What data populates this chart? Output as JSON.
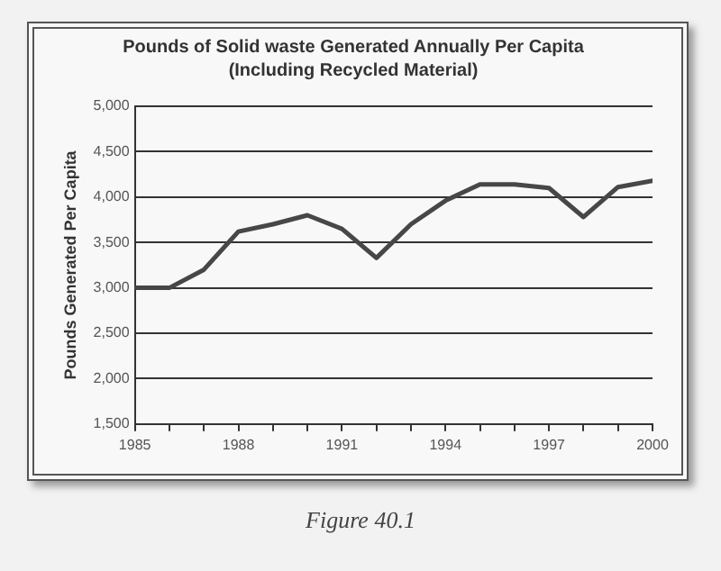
{
  "chart_data": {
    "type": "line",
    "title": "Pounds of Solid waste Generated Annually Per Capita",
    "subtitle": "(Including Recycled Material)",
    "ylabel": "Pounds Generated Per Capita",
    "annotations": [
      "Figure 40.1"
    ],
    "x": [
      1985,
      1986,
      1987,
      1988,
      1989,
      1990,
      1991,
      1992,
      1993,
      1994,
      1995,
      1996,
      1997,
      1998,
      1999,
      2000
    ],
    "series": [
      {
        "color": "#474747",
        "values": [
          3000,
          3000,
          3200,
          3620,
          3700,
          3800,
          3650,
          3330,
          3700,
          3960,
          4140,
          4140,
          4100,
          3780,
          4110,
          4180
        ]
      }
    ],
    "xlim": [
      1985,
      2000
    ],
    "xticks": [
      1985,
      {
        "value": 1986,
        "label": null
      },
      {
        "value": 1987,
        "label": null
      },
      1988,
      {
        "value": 1989,
        "label": null
      },
      {
        "value": 1990,
        "label": null
      },
      1991,
      {
        "value": 1992,
        "label": null
      },
      {
        "value": 1993,
        "label": null
      },
      1994,
      {
        "value": 1995,
        "label": null
      },
      {
        "value": 1996,
        "label": null
      },
      1997,
      {
        "value": 1998,
        "label": null
      },
      {
        "value": 1999,
        "label": null
      },
      2000
    ],
    "ylim": [
      1500,
      5000
    ],
    "yticks": [
      {
        "value": 1500,
        "label": "1,500"
      },
      {
        "value": 2000,
        "label": "2,000"
      },
      {
        "value": 2500,
        "label": "2,500"
      },
      {
        "value": 3000,
        "label": "3,000"
      },
      {
        "value": 3500,
        "label": "3,500"
      },
      {
        "value": 4000,
        "label": "4,000"
      },
      {
        "value": 4500,
        "label": "4,500"
      },
      {
        "value": 5000,
        "label": "5,000"
      }
    ],
    "grid": "y",
    "legend": false,
    "marker": "none",
    "line_style": "solid"
  }
}
